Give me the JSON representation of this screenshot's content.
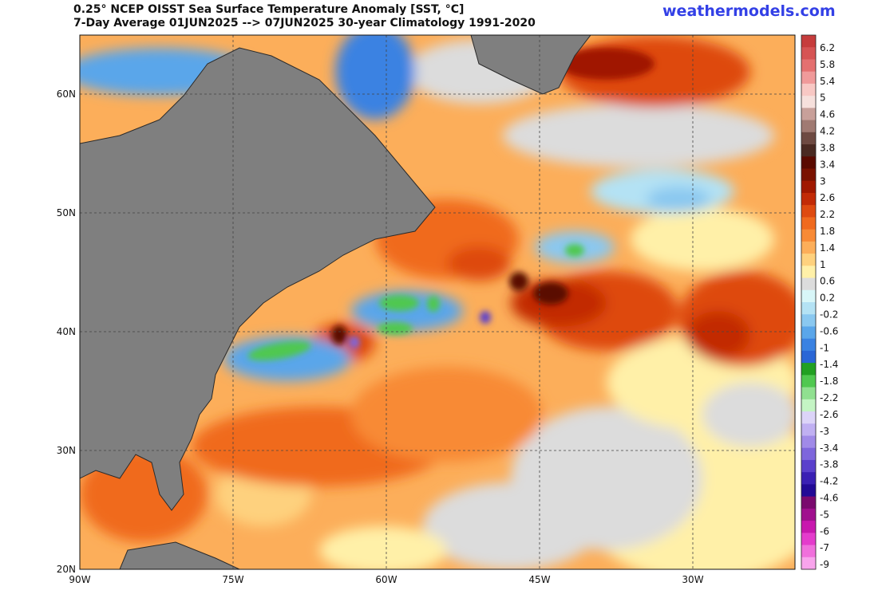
{
  "header": {
    "title_line1": "0.25° NCEP OISST Sea Surface Temperature Anomaly [SST, °C]",
    "title_line2": "7-Day Average 01JUN2025 --> 07JUN2025   30-year Climatology 1991-2020",
    "brand": "weathermodels.com"
  },
  "map": {
    "lon_labels": [
      "90W",
      "75W",
      "60W",
      "45W",
      "30W"
    ],
    "lat_labels": [
      "60N",
      "50N",
      "40N",
      "30N",
      "20N"
    ],
    "lon_range": [
      -90,
      -20
    ],
    "lat_range": [
      20,
      65
    ]
  },
  "colorbar": {
    "labels": [
      "6.2",
      "5.8",
      "5.4",
      "5",
      "4.6",
      "4.2",
      "3.8",
      "3.4",
      "3",
      "2.6",
      "2.2",
      "1.8",
      "1.4",
      "1",
      "0.6",
      "0.2",
      "-0.2",
      "-0.6",
      "-1",
      "-1.4",
      "-1.8",
      "-2.2",
      "-2.6",
      "-3",
      "-3.4",
      "-3.8",
      "-4.2",
      "-4.6",
      "-5",
      "-6",
      "-7",
      "-9"
    ],
    "colors": [
      "#c63c3c",
      "#d65454",
      "#e47070",
      "#f09a9a",
      "#f8c8c4",
      "#f6e0dc",
      "#c8a09a",
      "#a07a72",
      "#6e4a42",
      "#4a2a22",
      "#5a0a00",
      "#7a1200",
      "#a01800",
      "#c22a06",
      "#de4a10",
      "#f06a1e",
      "#f88a36",
      "#fcae5a",
      "#fed17e",
      "#fff0a8",
      "#dcdcdc",
      "#d8f6f8",
      "#b4e2f4",
      "#8ac8f0",
      "#5aa6ea",
      "#3a82e2",
      "#2a66d6",
      "#22a022",
      "#50c850",
      "#90e090",
      "#c4f4c4",
      "#dcd4f8",
      "#c0b0f2",
      "#a08ae8",
      "#7e66dc",
      "#5a40cc",
      "#3a20b4",
      "#220a96",
      "#7a0a6e",
      "#a0108e",
      "#c818ae",
      "#e43ccc",
      "#f070dc",
      "#f8a4ec"
    ]
  }
}
